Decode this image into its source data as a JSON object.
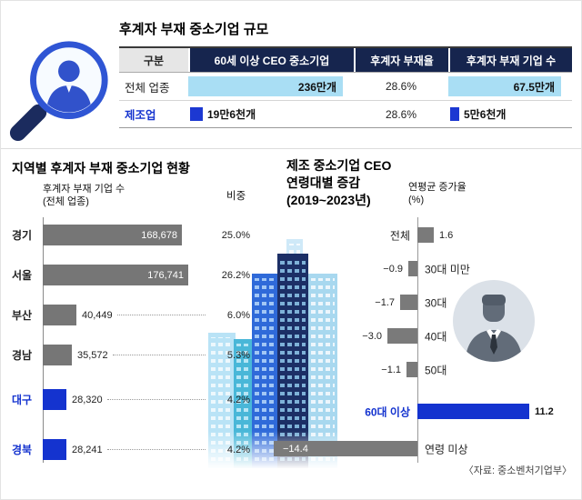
{
  "colors": {
    "accent_blue": "#1433cf",
    "light_blue_bar": "#a9def4",
    "navy_header": "#16254e",
    "gray_bar": "#767676"
  },
  "header_section": {
    "title": "후계자 부재 중소기업 규모",
    "table": {
      "columns": [
        "구분",
        "60세 이상 CEO 중소기업",
        "후계자 부재율",
        "후계자 부재 기업 수"
      ],
      "rows": [
        {
          "label": "전체 업종",
          "ceo_count": "236만개",
          "rate": "28.6%",
          "no_successor_count": "67.5만개"
        },
        {
          "label": "제조업",
          "ceo_count": "19만6천개",
          "rate": "28.6%",
          "no_successor_count": "5만6천개"
        }
      ]
    }
  },
  "left_section": {
    "title": "지역별 후계자 부재 중소기업 현황",
    "col_value_header_line1": "후계자 부재 기업 수",
    "col_value_header_line2": "(전체 업종)",
    "col_pct_header": "비중"
  },
  "right_section": {
    "title_line1": "제조 중소기업 CEO",
    "title_line2": "연령대별 증감",
    "title_line3": "(2019~2023년)",
    "axis_label_line1": "연평균 증가율",
    "axis_label_line2": "(%)"
  },
  "source": "〈자료: 중소벤처기업부〉",
  "chart_data": [
    {
      "type": "bar",
      "orientation": "horizontal",
      "title": "지역별 후계자 부재 중소기업 현황",
      "value_header": "후계자 부재 기업 수 (전체 업종)",
      "pct_header": "비중",
      "categories": [
        "경기",
        "서울",
        "부산",
        "경남",
        "대구",
        "경북"
      ],
      "values": [
        168678,
        176741,
        40449,
        35572,
        28320,
        28241
      ],
      "value_labels": [
        "168,678",
        "176,741",
        "40,449",
        "35,572",
        "28,320",
        "28,241"
      ],
      "pct_labels": [
        "25.0%",
        "26.2%",
        "6.0%",
        "5.3%",
        "4.2%",
        "4.2%"
      ],
      "highlight": [
        false,
        false,
        false,
        false,
        true,
        true
      ]
    },
    {
      "type": "bar",
      "orientation": "horizontal-diverging",
      "title": "제조 중소기업 CEO 연령대별 증감 (2019~2023년)",
      "ylabel": "연평균 증가율 (%)",
      "categories": [
        "전체",
        "30대 미만",
        "30대",
        "40대",
        "50대",
        "60대 이상",
        "연령 미상"
      ],
      "values": [
        1.6,
        -0.9,
        -1.7,
        -3.0,
        -1.1,
        11.2,
        -14.4
      ],
      "value_labels": [
        "1.6",
        "−0.9",
        "−1.7",
        "−3.0",
        "−1.1",
        "11.2",
        "−14.4"
      ],
      "highlight": [
        false,
        false,
        false,
        false,
        false,
        true,
        false
      ]
    }
  ]
}
